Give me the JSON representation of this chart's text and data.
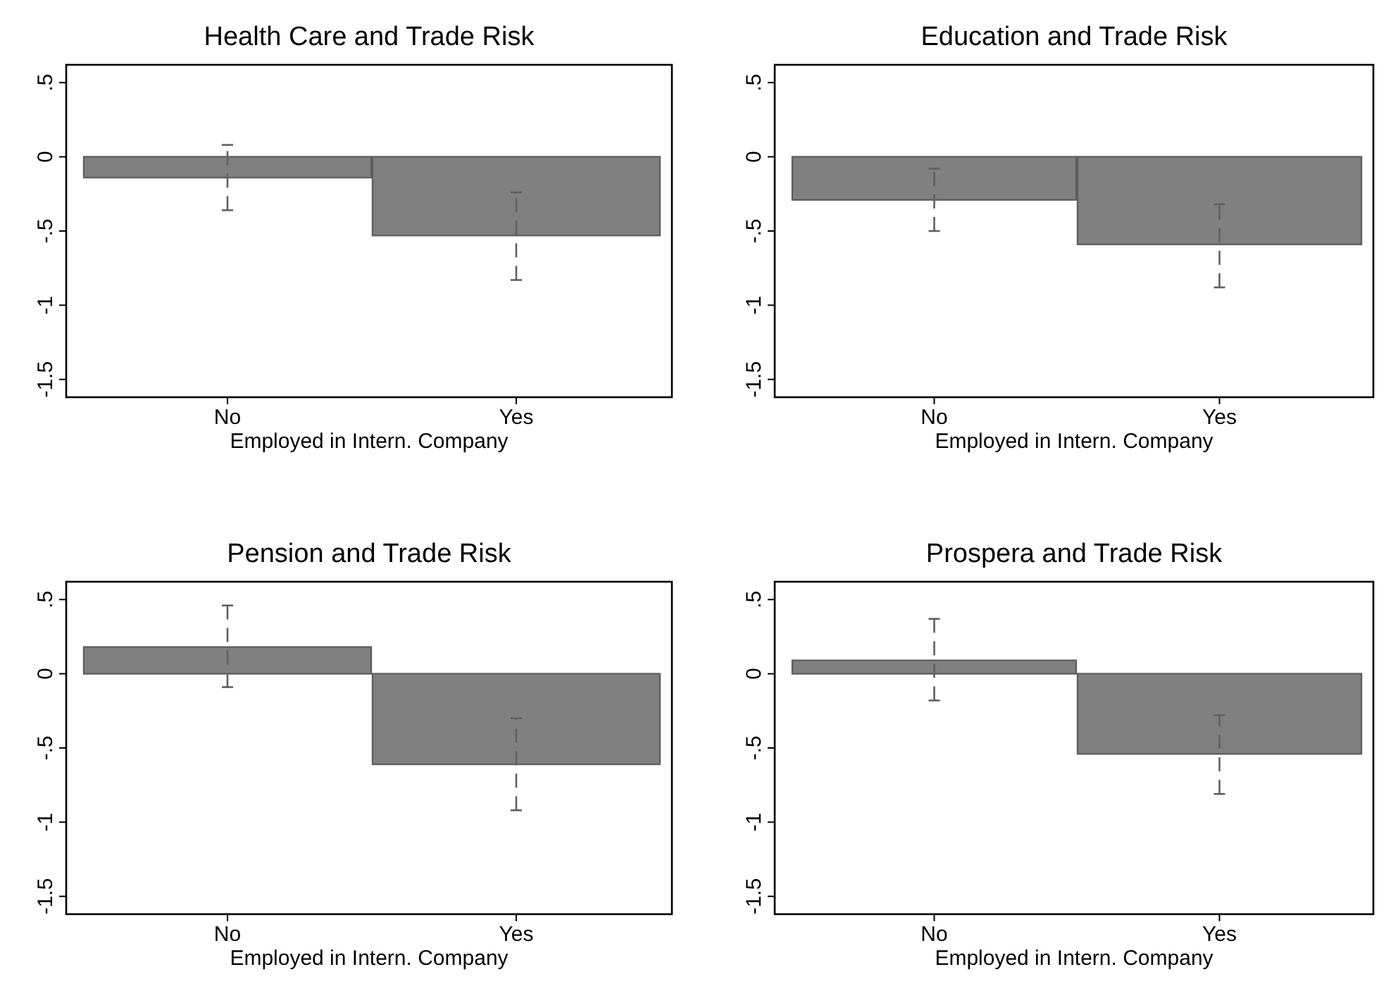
{
  "chart_data": [
    {
      "type": "bar",
      "title": "Health Care and Trade Risk",
      "xlabel": "Employed in Intern. Company",
      "categories": [
        "No",
        "Yes"
      ],
      "series": [
        {
          "color": "#808080",
          "values": [
            -0.14,
            -0.53
          ],
          "errors": [
            [
              -0.36,
              0.08
            ],
            [
              -0.83,
              -0.24
            ]
          ]
        }
      ],
      "ylim": [
        -1.62,
        0.62
      ],
      "yticks": [
        {
          "value": -1.5,
          "label": "-1.5"
        },
        {
          "value": -1,
          "label": "-1"
        },
        {
          "value": -0.5,
          "label": "-.5"
        },
        {
          "value": 0,
          "label": "0"
        },
        {
          "value": 0.5,
          "label": ".5"
        }
      ]
    },
    {
      "type": "bar",
      "title": "Education and Trade Risk",
      "xlabel": "Employed in Intern. Company",
      "categories": [
        "No",
        "Yes"
      ],
      "series": [
        {
          "color": "#808080",
          "values": [
            -0.29,
            -0.59
          ],
          "errors": [
            [
              -0.5,
              -0.08
            ],
            [
              -0.88,
              -0.32
            ]
          ]
        }
      ],
      "ylim": [
        -1.62,
        0.62
      ],
      "yticks": [
        {
          "value": -1.5,
          "label": "-1.5"
        },
        {
          "value": -1,
          "label": "-1"
        },
        {
          "value": -0.5,
          "label": "-.5"
        },
        {
          "value": 0,
          "label": "0"
        },
        {
          "value": 0.5,
          "label": ".5"
        }
      ]
    },
    {
      "type": "bar",
      "title": "Pension and Trade Risk",
      "xlabel": "Employed in Intern. Company",
      "categories": [
        "No",
        "Yes"
      ],
      "series": [
        {
          "color": "#808080",
          "values": [
            0.18,
            -0.61
          ],
          "errors": [
            [
              -0.09,
              0.46
            ],
            [
              -0.92,
              -0.3
            ]
          ]
        }
      ],
      "ylim": [
        -1.62,
        0.62
      ],
      "yticks": [
        {
          "value": -1.5,
          "label": "-1.5"
        },
        {
          "value": -1,
          "label": "-1"
        },
        {
          "value": -0.5,
          "label": "-.5"
        },
        {
          "value": 0,
          "label": "0"
        },
        {
          "value": 0.5,
          "label": ".5"
        }
      ]
    },
    {
      "type": "bar",
      "title": "Prospera and Trade Risk",
      "xlabel": "Employed in Intern. Company",
      "categories": [
        "No",
        "Yes"
      ],
      "series": [
        {
          "color": "#808080",
          "values": [
            0.09,
            -0.54
          ],
          "errors": [
            [
              -0.18,
              0.37
            ],
            [
              -0.81,
              -0.28
            ]
          ]
        }
      ],
      "ylim": [
        -1.62,
        0.62
      ],
      "yticks": [
        {
          "value": -1.5,
          "label": "-1.5"
        },
        {
          "value": -1,
          "label": "-1"
        },
        {
          "value": -0.5,
          "label": "-.5"
        },
        {
          "value": 0,
          "label": "0"
        },
        {
          "value": 0.5,
          "label": ".5"
        }
      ]
    }
  ]
}
